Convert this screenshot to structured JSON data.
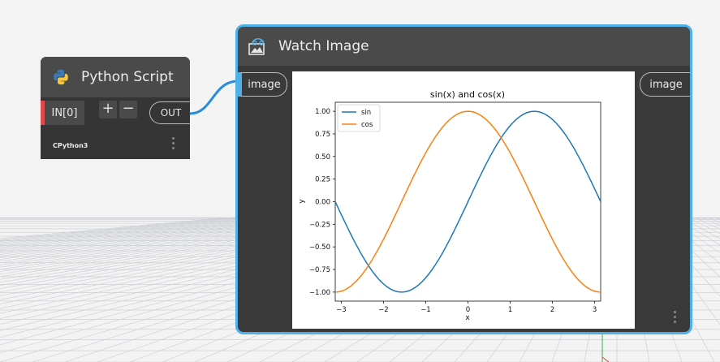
{
  "python_node": {
    "title": "Python Script",
    "input_port": "IN[0]",
    "add_label": "+",
    "remove_label": "−",
    "output_port": "OUT",
    "engine": "CPython3"
  },
  "watch_node": {
    "title": "Watch Image",
    "input_port": "image",
    "output_port": "image"
  },
  "colors": {
    "sin": "#1f77b4",
    "cos": "#ff7f0e",
    "watch_border": "#4fb0e8",
    "connector": "#2a8bd8",
    "input_flag": "#e0484d"
  },
  "chart_data": {
    "type": "line",
    "title": "sin(x) and cos(x)",
    "xlabel": "x",
    "ylabel": "y",
    "xlim": [
      -3.14159,
      3.14159
    ],
    "ylim": [
      -1.1,
      1.1
    ],
    "xticks": [
      -3,
      -2,
      -1,
      0,
      1,
      2,
      3
    ],
    "yticks": [
      -1.0,
      -0.75,
      -0.5,
      -0.25,
      0.0,
      0.25,
      0.5,
      0.75,
      1.0
    ],
    "ytick_labels": [
      "−1.00",
      "−0.75",
      "−0.50",
      "−0.25",
      "0.00",
      "0.25",
      "0.50",
      "0.75",
      "1.00"
    ],
    "xtick_labels": [
      "−3",
      "−2",
      "−1",
      "0",
      "1",
      "2",
      "3"
    ],
    "legend": "top-left",
    "grid": false,
    "series": [
      {
        "name": "sin",
        "function": "sin",
        "x_range": [
          -3.14159,
          3.14159
        ]
      },
      {
        "name": "cos",
        "function": "cos",
        "x_range": [
          -3.14159,
          3.14159
        ]
      }
    ]
  }
}
